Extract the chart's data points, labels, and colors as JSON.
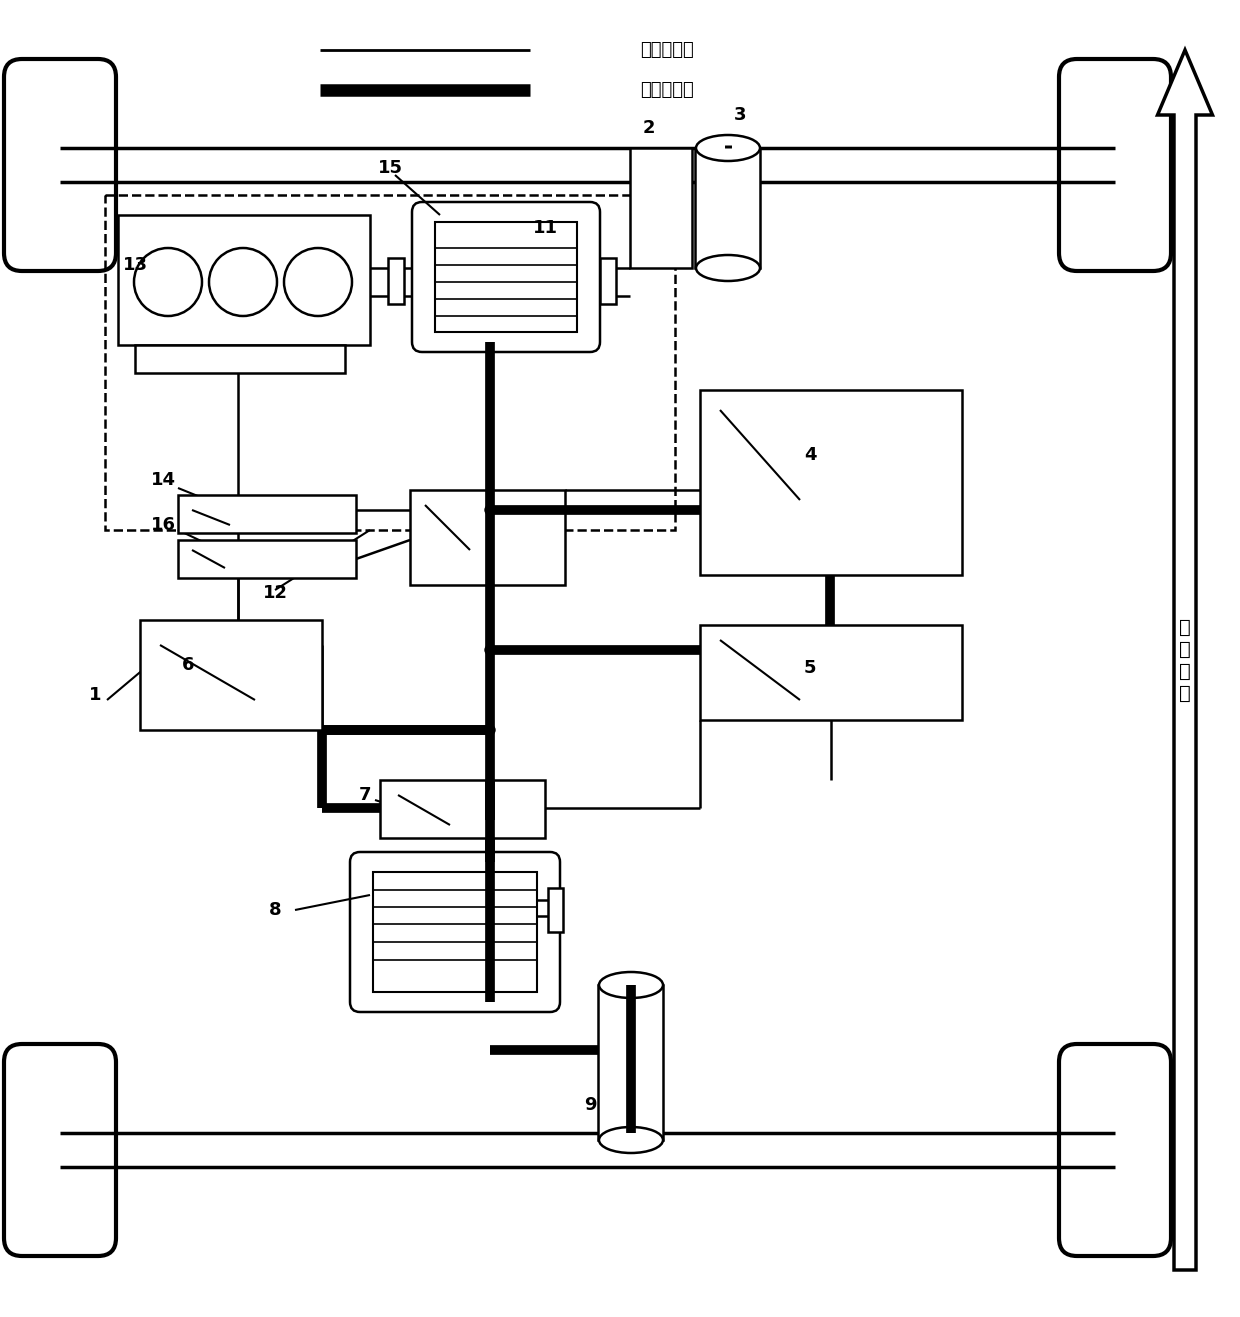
{
  "bg": "#ffffff",
  "lc": "#000000",
  "legend_thin_label": "控制信号线",
  "legend_thick_label": "动力电源线",
  "arrow_label": "车\n头\n方\n向",
  "numbers": [
    "1",
    "2",
    "3",
    "4",
    "5",
    "6",
    "7",
    "8",
    "9",
    "11",
    "12",
    "13",
    "14",
    "15",
    "16"
  ]
}
